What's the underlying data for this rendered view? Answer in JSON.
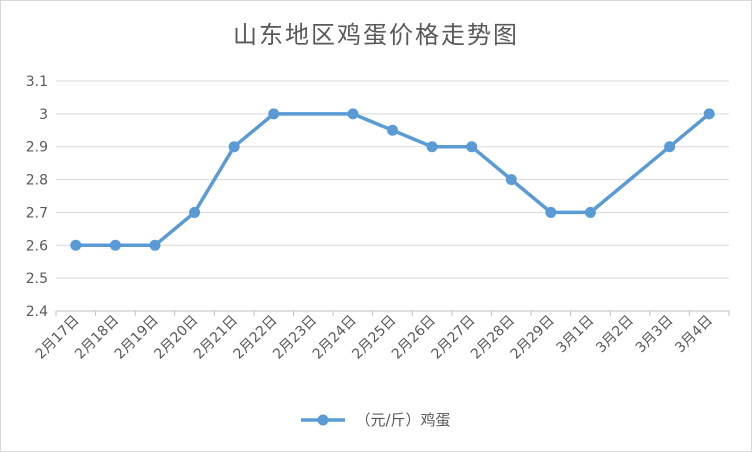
{
  "chart_data": {
    "type": "line",
    "title": "山东地区鸡蛋价格走势图",
    "xlabel": "",
    "ylabel": "",
    "categories": [
      "2月17日",
      "2月18日",
      "2月19日",
      "2月20日",
      "2月21日",
      "2月22日",
      "2月23日",
      "2月24日",
      "2月25日",
      "2月26日",
      "2月27日",
      "2月28日",
      "2月29日",
      "3月1日",
      "3月2日",
      "3月3日",
      "3月4日"
    ],
    "series": [
      {
        "name": "（元/斤）鸡蛋",
        "color": "#5b9bd5",
        "values": [
          2.6,
          2.6,
          2.6,
          2.7,
          2.9,
          3.0,
          null,
          3.0,
          2.95,
          2.9,
          2.9,
          2.8,
          2.7,
          2.7,
          null,
          2.9,
          3.0
        ]
      }
    ],
    "yticks": [
      "2.4",
      "2.5",
      "2.6",
      "2.7",
      "2.8",
      "2.9",
      "3",
      "3.1"
    ],
    "ylim": [
      2.4,
      3.1
    ],
    "grid": true,
    "legend_position": "bottom"
  }
}
